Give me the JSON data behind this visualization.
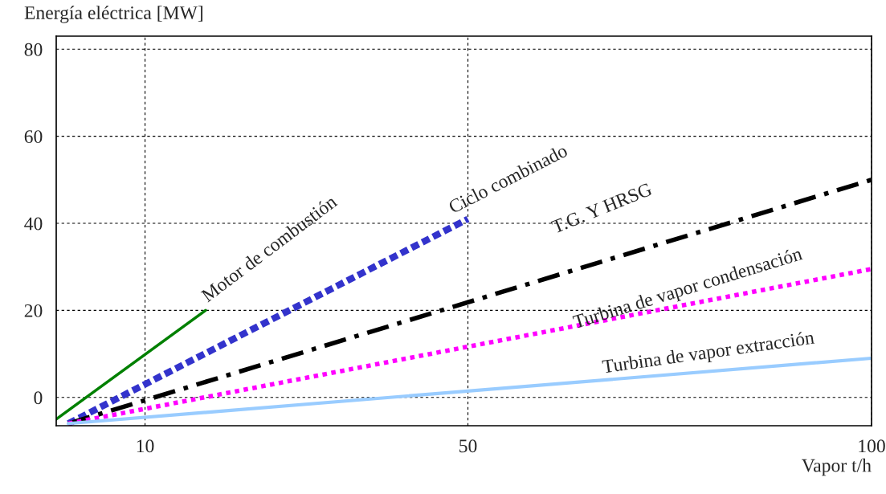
{
  "chart_data": {
    "type": "line",
    "xlabel": "Vapor t/h",
    "ylabel": "Energía eléctrica [MW]",
    "xlim": [
      -1,
      100
    ],
    "xticks": [
      10,
      50,
      100
    ],
    "ylim": [
      -6.5,
      83
    ],
    "yticks": [
      0,
      20,
      40,
      60,
      80
    ],
    "grid": true,
    "series": [
      {
        "name": "Motor de combustión",
        "color": "#008000",
        "line_style": "solid",
        "x": [
          -1,
          17.5
        ],
        "values": [
          -5,
          20
        ]
      },
      {
        "name": "Ciclo combinado",
        "color": "#3333cc",
        "line_style": "dashed",
        "x": [
          0.5,
          50
        ],
        "values": [
          -6,
          41
        ]
      },
      {
        "name": "T.G. Y HRSG",
        "color": "#000000",
        "line_style": "dashdot",
        "x": [
          0.5,
          100
        ],
        "values": [
          -6,
          50
        ]
      },
      {
        "name": "Turbina de vapor condensación",
        "color": "#ff00ff",
        "line_style": "dotted",
        "x": [
          0.5,
          100
        ],
        "values": [
          -6,
          29.5
        ]
      },
      {
        "name": "Turbina de vapor extracción",
        "color": "#99ccff",
        "line_style": "solid",
        "x": [
          0.5,
          100
        ],
        "values": [
          -6,
          9
        ]
      }
    ]
  }
}
